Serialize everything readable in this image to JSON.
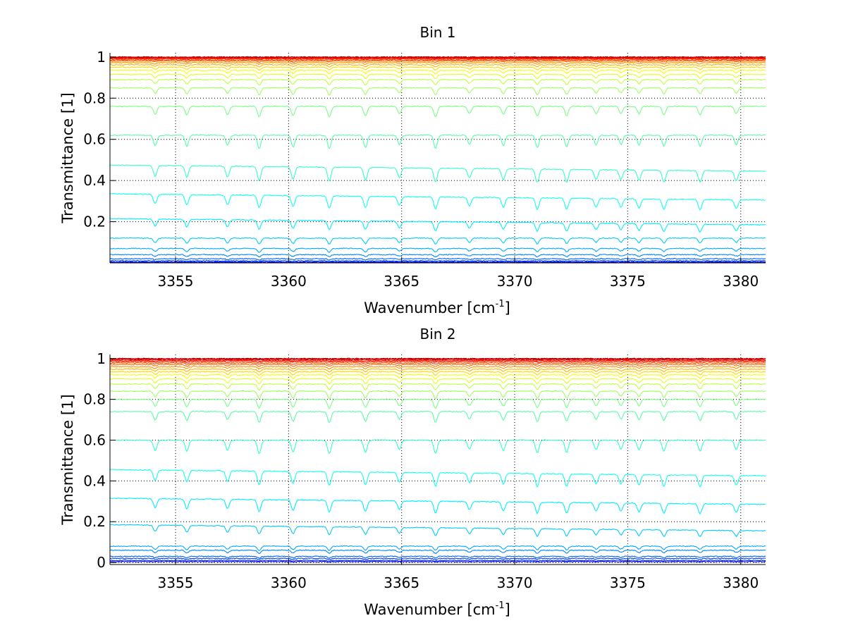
{
  "chart_data": [
    {
      "type": "line",
      "title": "Bin 1",
      "xlabel_main": "Wavenumber [cm",
      "xlabel_sup": "-1",
      "xlabel_end": "]",
      "ylabel": "Transmittance [1]",
      "xlim": [
        3352.1,
        3381.1
      ],
      "ylim": [
        0,
        1.02
      ],
      "xticks": [
        3355,
        3360,
        3365,
        3370,
        3375,
        3380
      ],
      "xtick_labels": [
        "3355",
        "3360",
        "3365",
        "3370",
        "3375",
        "3380"
      ],
      "yticks": [
        0.2,
        0.4,
        0.6,
        0.8,
        1
      ],
      "ytick_labels": [
        "0.2",
        "0.4",
        "0.6",
        "0.8",
        "1"
      ],
      "grid": "dotted",
      "colormap": "jet",
      "absorption_lines_x": [
        3354.1,
        3355.5,
        3357.3,
        3358.7,
        3360.2,
        3361.8,
        3363.4,
        3364.9,
        3366.5,
        3368.0,
        3369.5,
        3371.0,
        3372.3,
        3373.6,
        3374.7,
        3375.5,
        3376.6,
        3378.2,
        3379.8
      ],
      "series_baselines": [
        1.0,
        0.998,
        0.996,
        0.993,
        0.99,
        0.985,
        0.98,
        0.972,
        0.962,
        0.95,
        0.935,
        0.915,
        0.89,
        0.85,
        0.76,
        0.62,
        0.46,
        0.32,
        0.2,
        0.12,
        0.07,
        0.04,
        0.02,
        0.01,
        0.005,
        0.002
      ]
    },
    {
      "type": "line",
      "title": "Bin 2",
      "xlabel_main": "Wavenumber [cm",
      "xlabel_sup": "-1",
      "xlabel_end": "]",
      "ylabel": "Transmittance [1]",
      "xlim": [
        3352.1,
        3381.1
      ],
      "ylim": [
        -0.01,
        1.02
      ],
      "xticks": [
        3355,
        3360,
        3365,
        3370,
        3375,
        3380
      ],
      "xtick_labels": [
        "3355",
        "3360",
        "3365",
        "3370",
        "3375",
        "3380"
      ],
      "yticks": [
        0,
        0.2,
        0.4,
        0.6,
        0.8,
        1
      ],
      "ytick_labels": [
        "0",
        "0.2",
        "0.4",
        "0.6",
        "0.8",
        "1"
      ],
      "grid": "dotted",
      "colormap": "jet",
      "absorption_lines_x": [
        3354.1,
        3355.5,
        3357.3,
        3358.7,
        3360.2,
        3361.8,
        3363.4,
        3364.9,
        3366.5,
        3368.0,
        3369.5,
        3371.0,
        3372.3,
        3373.6,
        3374.7,
        3375.5,
        3376.6,
        3378.2,
        3379.8
      ],
      "series_baselines": [
        1.0,
        0.998,
        0.995,
        0.99,
        0.985,
        0.978,
        0.97,
        0.96,
        0.948,
        0.935,
        0.92,
        0.9,
        0.875,
        0.84,
        0.8,
        0.74,
        0.6,
        0.44,
        0.3,
        0.17,
        0.08,
        0.06,
        0.03,
        0.02,
        0.01,
        0.004
      ]
    }
  ]
}
